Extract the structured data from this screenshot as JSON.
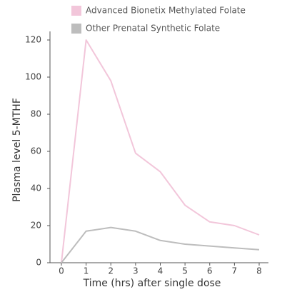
{
  "chart_data": {
    "type": "line",
    "x_label": "Time (hrs) after single dose",
    "y_label": "Plasma level 5-MTHF",
    "x": [
      0,
      1,
      2,
      3,
      4,
      5,
      6,
      7,
      8
    ],
    "series": [
      {
        "name": "Advanced Bionetix Methylated Folate",
        "color": "#f2c6da",
        "values": [
          0,
          120,
          98,
          59,
          49,
          31,
          22,
          20,
          15
        ]
      },
      {
        "name": "Other Prenatal Synthetic Folate",
        "color": "#bdbdbd",
        "values": [
          0,
          17,
          19,
          17,
          12,
          10,
          9,
          8,
          7
        ]
      }
    ],
    "xlim": [
      0,
      8
    ],
    "xticks": [
      0,
      1,
      2,
      3,
      4,
      5,
      6,
      7,
      8
    ],
    "ylim": [
      0,
      120
    ],
    "yticks": [
      0,
      20,
      40,
      60,
      80,
      100,
      120
    ],
    "grid": false
  }
}
